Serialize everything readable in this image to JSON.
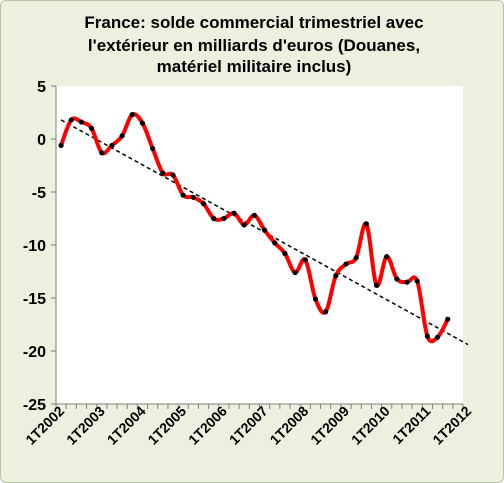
{
  "chart_data": {
    "type": "line",
    "title": "France: solde commercial trimestriel avec l'extérieur en milliards d'euros (Douanes, matériel militaire inclus)",
    "title_lines": [
      "France: solde commercial trimestriel avec",
      "l'extérieur en milliards d'euros (Douanes,",
      "matériel militaire inclus)"
    ],
    "xlabel": "",
    "ylabel": "",
    "ylim": [
      -25,
      5
    ],
    "yticks": [
      5,
      0,
      -5,
      -10,
      -15,
      -20,
      -25
    ],
    "ytick_labels": [
      "5",
      "0",
      "-5",
      "-10",
      "-15",
      "-20",
      "-25"
    ],
    "xticks": [
      "1T2002",
      "1T2003",
      "1T2004",
      "1T2005",
      "1T2006",
      "1T2007",
      "1T2008",
      "1T2009",
      "1T2010",
      "1T2011",
      "1T2012"
    ],
    "grid": false,
    "legend": "none",
    "categories": [
      "1T2002",
      "2T2002",
      "3T2002",
      "4T2002",
      "1T2003",
      "2T2003",
      "3T2003",
      "4T2003",
      "1T2004",
      "2T2004",
      "3T2004",
      "4T2004",
      "1T2005",
      "2T2005",
      "3T2005",
      "4T2005",
      "1T2006",
      "2T2006",
      "3T2006",
      "4T2006",
      "1T2007",
      "2T2007",
      "3T2007",
      "4T2007",
      "1T2008",
      "2T2008",
      "3T2008",
      "4T2008",
      "1T2009",
      "2T2009",
      "3T2009",
      "4T2009",
      "1T2010",
      "2T2010",
      "3T2010",
      "4T2010",
      "1T2011",
      "2T2011",
      "3T2011"
    ],
    "series": [
      {
        "values": [
          -0.6,
          1.8,
          1.6,
          1.0,
          -1.3,
          -0.6,
          0.3,
          2.3,
          1.5,
          -0.9,
          -3.2,
          -3.4,
          -5.3,
          -5.5,
          -6.1,
          -7.5,
          -7.5,
          -7.0,
          -8.1,
          -7.2,
          -8.6,
          -9.8,
          -10.8,
          -12.6,
          -11.4,
          -15.1,
          -16.3,
          -12.9,
          -11.8,
          -11.2,
          -8.0,
          -13.8,
          -11.1,
          -13.2,
          -13.5,
          -13.4,
          -18.6,
          -18.7,
          -17.0
        ]
      }
    ],
    "trendline": {
      "x": [
        0,
        40
      ],
      "y": [
        1.8,
        -19.4
      ],
      "style": "dashed"
    },
    "colors": {
      "line": "#ff0000",
      "marker": "#000000",
      "trend": "#000000",
      "plot_bg": "#ffffff",
      "frame_bg": "#ebf1de"
    }
  }
}
